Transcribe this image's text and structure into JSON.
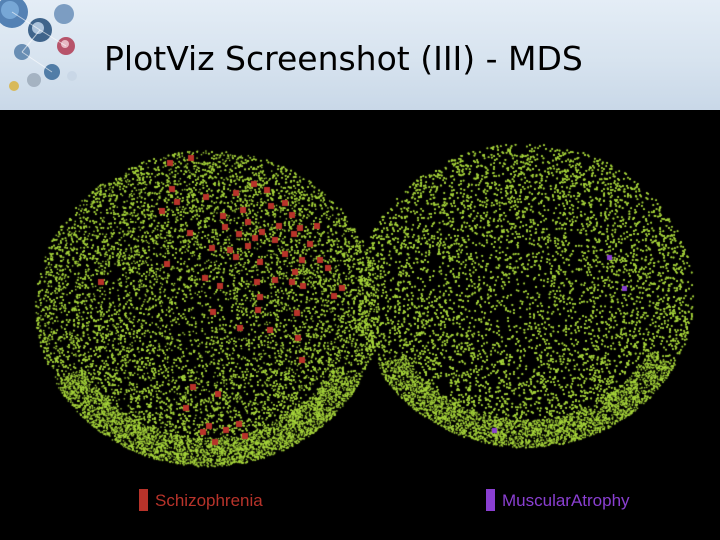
{
  "slide": {
    "title": "PlotViz Screenshot (III) - MDS"
  },
  "plot": {
    "background_color": "#000000",
    "point_color": "#a6d43a",
    "clusters": [
      {
        "name": "Schizophrenia",
        "highlight_color": "#b8332a",
        "legend_label": "Schizophrenia"
      },
      {
        "name": "MuscularAtrophy",
        "highlight_color": "#8a3fd1",
        "legend_label": "MuscularAtrophy"
      }
    ]
  },
  "icons": {
    "header_logo": "globe-network-icon"
  }
}
